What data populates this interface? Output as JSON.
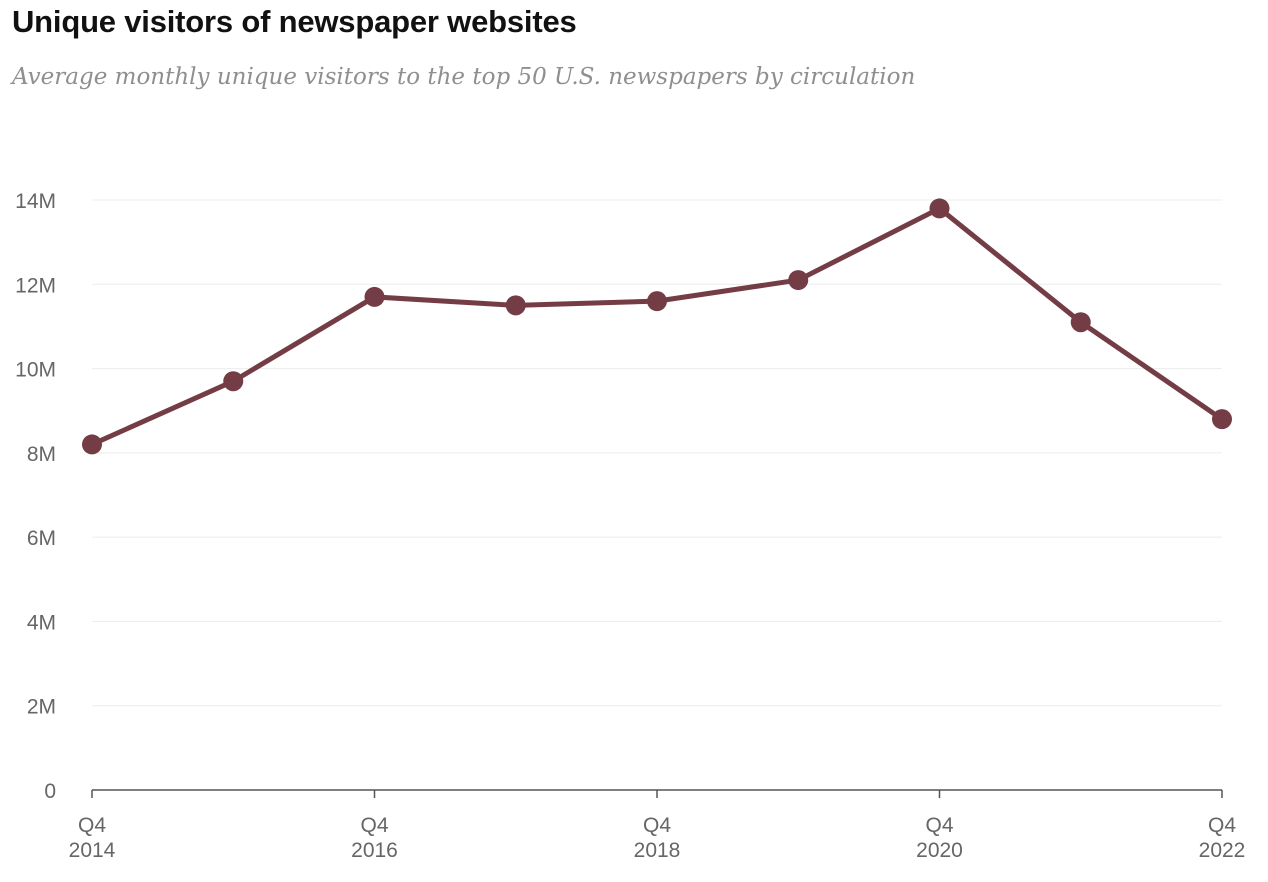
{
  "header": {
    "title": "Unique visitors of newspaper websites",
    "subtitle": "Average monthly unique visitors to the top 50 U.S. newspapers by circulation"
  },
  "chart_data": {
    "type": "line",
    "title": "Unique visitors of newspaper websites",
    "subtitle": "Average monthly unique visitors to the top 50 U.S. newspapers by circulation",
    "xlabel": "",
    "ylabel": "",
    "x": [
      "Q4 2014",
      "Q4 2015",
      "Q4 2016",
      "Q4 2017",
      "Q4 2018",
      "Q4 2019",
      "Q4 2020",
      "Q4 2021",
      "Q4 2022"
    ],
    "x_tick_labels": [
      {
        "index": 0,
        "line1": "Q4",
        "line2": "2014"
      },
      {
        "index": 2,
        "line1": "Q4",
        "line2": "2016"
      },
      {
        "index": 4,
        "line1": "Q4",
        "line2": "2018"
      },
      {
        "index": 6,
        "line1": "Q4",
        "line2": "2020"
      },
      {
        "index": 8,
        "line1": "Q4",
        "line2": "2022"
      }
    ],
    "series": [
      {
        "values": [
          8200000,
          9700000,
          11700000,
          11500000,
          11600000,
          12100000,
          13800000,
          11100000,
          8800000
        ]
      }
    ],
    "ylim": [
      0,
      14000000
    ],
    "y_ticks": [
      {
        "value": 0,
        "label": "0"
      },
      {
        "value": 2000000,
        "label": "2M"
      },
      {
        "value": 4000000,
        "label": "4M"
      },
      {
        "value": 6000000,
        "label": "6M"
      },
      {
        "value": 8000000,
        "label": "8M"
      },
      {
        "value": 10000000,
        "label": "10M"
      },
      {
        "value": 12000000,
        "label": "12M"
      },
      {
        "value": 14000000,
        "label": "14M"
      }
    ],
    "grid": true,
    "legend": "none",
    "colors": {
      "line": "#743d46",
      "grid": "#ececec",
      "axis": "#555555",
      "tick_text": "#666666"
    }
  }
}
